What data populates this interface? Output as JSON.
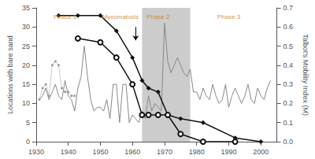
{
  "chart_data": {
    "type": "line",
    "xlim": [
      1930,
      2005
    ],
    "xticks": [
      1930,
      1940,
      1950,
      1960,
      1970,
      1980,
      1990,
      2000
    ],
    "ylabel": "Locations with bare sand",
    "ylim": [
      0,
      35
    ],
    "yticks": [
      0,
      5,
      10,
      15,
      20,
      25,
      30,
      35
    ],
    "y2label": "Talbot's Mobility Index (M)",
    "y2lim": [
      0,
      0.7
    ],
    "y2ticks": [
      {
        "value": 0,
        "label": "0.0"
      },
      0.1,
      0.2,
      0.3,
      0.4,
      0.5,
      0.6,
      0.7
    ],
    "grid": false,
    "spans": [
      {
        "xmin": 1963,
        "xmax": 1978,
        "color": "#cccccc"
      }
    ],
    "series": [
      {
        "axis": "y2",
        "color": "#888888",
        "line_style": "solid",
        "marker": "none",
        "x": [
          1931,
          1932,
          1933,
          1934,
          1935,
          1936,
          1937,
          1938,
          1939,
          1940,
          1941,
          1942,
          1943,
          1944,
          1945,
          1946,
          1947,
          1948,
          1949,
          1950,
          1951,
          1952,
          1953,
          1954,
          1955,
          1956,
          1957,
          1958,
          1959,
          1960,
          1961,
          1962,
          1963,
          1964,
          1965,
          1966,
          1967,
          1968,
          1969,
          1970,
          1971,
          1972,
          1973,
          1974,
          1975,
          1976,
          1977,
          1978,
          1979,
          1980,
          1981,
          1982,
          1983,
          1984,
          1985,
          1986,
          1987,
          1988,
          1989,
          1990,
          1991,
          1992,
          1993,
          1994,
          1995,
          1996,
          1997,
          1998,
          1999,
          2000,
          2001,
          2002,
          2003
        ],
        "values": [
          0.22,
          0.24,
          0.28,
          0.22,
          0.26,
          0.3,
          0.24,
          0.22,
          0.32,
          0.24,
          0.22,
          0.16,
          0.28,
          0.34,
          0.5,
          0.34,
          0.22,
          0.16,
          0.18,
          0.18,
          0.16,
          0.22,
          0.12,
          0.3,
          0.3,
          0.1,
          0.3,
          0.3,
          0.1,
          0.14,
          0.12,
          0.1,
          0.16,
          0.12,
          0.24,
          0.16,
          0.2,
          0.18,
          0.16,
          0.62,
          0.42,
          0.36,
          0.4,
          0.44,
          0.4,
          0.36,
          0.34,
          0.38,
          0.26,
          0.26,
          0.22,
          0.28,
          0.24,
          0.22,
          0.3,
          0.24,
          0.2,
          0.22,
          0.3,
          0.18,
          0.24,
          0.28,
          0.24,
          0.2,
          0.24,
          0.3,
          0.22,
          0.2,
          0.28,
          0.24,
          0.22,
          0.28,
          0.32
        ]
      },
      {
        "color": "#999999",
        "line_style": "dotted",
        "marker": "point",
        "x": [
          1931,
          1932,
          1933,
          1934,
          1935,
          1936,
          1937,
          1938,
          1939,
          1940,
          1941,
          1942
        ],
        "values": [
          11,
          14,
          15,
          12,
          20,
          21,
          20,
          14,
          13,
          13,
          12,
          12
        ]
      },
      {
        "color": "#111111",
        "line_style": "solid",
        "marker": "diamond",
        "x": [
          1937,
          1943,
          1950,
          1955,
          1960,
          1963,
          1965,
          1968,
          1971,
          1975,
          1982,
          1992,
          2000
        ],
        "values": [
          33,
          33,
          33,
          29,
          22,
          16,
          14,
          13,
          7,
          6,
          5,
          1,
          0
        ]
      },
      {
        "color": "#111111",
        "line_style": "solid",
        "marker": "open_circle",
        "x": [
          1943,
          1950,
          1955,
          1960,
          1963,
          1965,
          1968,
          1971,
          1975,
          1982,
          1992
        ],
        "values": [
          27,
          26,
          22,
          15,
          7,
          7,
          7,
          7,
          2,
          0,
          0
        ]
      }
    ],
    "annotations": [
      {
        "text": "Phase 1",
        "x": 1939,
        "y": 33.5,
        "color": "#c87820"
      },
      {
        "text": "Myxomatosis",
        "x": 1962,
        "y": 33.5,
        "color": "#c87820"
      },
      {
        "text": "Phase 2",
        "x": 1968,
        "y": 33.5,
        "color": "#c87820"
      },
      {
        "text": "Phase 3",
        "x": 1990,
        "y": 33.5,
        "color": "#c87820"
      }
    ],
    "arrows": [
      {
        "x": 1961,
        "y_start": 30,
        "y_end": 26.5
      }
    ]
  }
}
